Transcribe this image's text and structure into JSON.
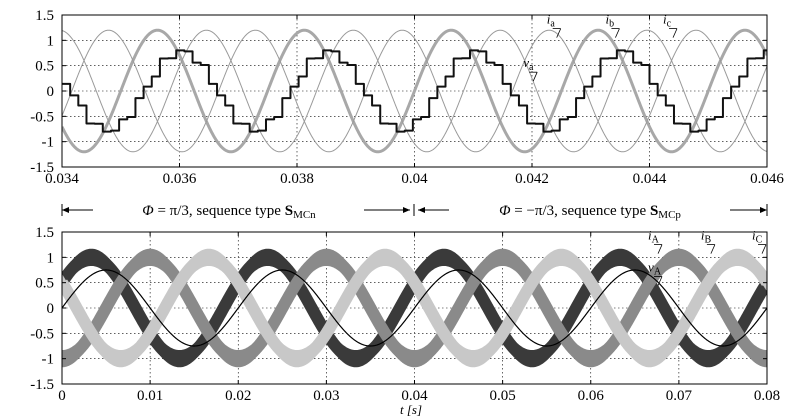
{
  "chart_data": [
    {
      "type": "line",
      "xlabel": "",
      "ylabel": "",
      "xlim": [
        0.034,
        0.046
      ],
      "ylim": [
        -1.5,
        1.5
      ],
      "grid": true,
      "x_ticks": [
        "0.034",
        "0.036",
        "0.038",
        "0.04",
        "0.042",
        "0.044",
        "0.046"
      ],
      "y_ticks": [
        "1.5",
        "1",
        "0.5",
        "0",
        "-0.5",
        "-1",
        "-1.5"
      ],
      "frequency_hz": 400,
      "series": [
        {
          "name": "i",
          "sub": "a",
          "amplitude": 1.2,
          "phase_deg": 0,
          "color": "#a8a8a8",
          "width": 3
        },
        {
          "name": "i",
          "sub": "b",
          "amplitude": 1.2,
          "phase_deg": -120,
          "color": "#9a9a9a",
          "width": 1
        },
        {
          "name": "i",
          "sub": "c",
          "amplitude": 1.2,
          "phase_deg": 120,
          "color": "#9a9a9a",
          "width": 1
        },
        {
          "name": "v",
          "sub": "a",
          "amplitude": 0.78,
          "phase_deg": -60,
          "color": "#111111",
          "width": 2,
          "style": "staircase"
        }
      ],
      "annotations": [
        {
          "label_main": "i",
          "label_sub": "a",
          "x": 0.04225,
          "y": 1.33
        },
        {
          "label_main": "i",
          "label_sub": "b",
          "x": 0.04325,
          "y": 1.33
        },
        {
          "label_main": "i",
          "label_sub": "c",
          "x": 0.04423,
          "y": 1.33
        },
        {
          "label_main": "v",
          "label_sub": "a",
          "x": 0.04185,
          "y": 0.47
        }
      ]
    },
    {
      "type": "line",
      "xlabel": "t [s]",
      "ylabel": "",
      "xlim": [
        0,
        0.08
      ],
      "ylim": [
        -1.5,
        1.5
      ],
      "grid": true,
      "x_ticks": [
        "0",
        "0.01",
        "0.02",
        "0.03",
        "0.04",
        "0.05",
        "0.06",
        "0.07",
        "0.08"
      ],
      "y_ticks": [
        "1.5",
        "1",
        "0.5",
        "0",
        "-0.5",
        "-1",
        "-1.5"
      ],
      "frequency_hz": 50,
      "series": [
        {
          "name": "i",
          "sub": "A",
          "amplitude": 1.0,
          "phase_deg": 30,
          "ripple": 0.17,
          "color": "#3a3a3a",
          "width": 12
        },
        {
          "name": "i",
          "sub": "B",
          "amplitude": 1.0,
          "phase_deg": -90,
          "ripple": 0.17,
          "color": "#8a8a8a",
          "width": 12
        },
        {
          "name": "i",
          "sub": "C",
          "amplitude": 1.0,
          "phase_deg": 150,
          "ripple": 0.17,
          "color": "#c8c8c8",
          "width": 12
        },
        {
          "name": "v",
          "sub": "A",
          "amplitude": 0.75,
          "phase_deg": 0,
          "color": "#000000",
          "width": 1.2
        }
      ],
      "annotations": [
        {
          "label_main": "i",
          "label_sub": "A",
          "x": 0.0665,
          "y": 1.35
        },
        {
          "label_main": "i",
          "label_sub": "B",
          "x": 0.0725,
          "y": 1.35
        },
        {
          "label_main": "i",
          "label_sub": "C",
          "x": 0.0783,
          "y": 1.35
        },
        {
          "label_main": "v",
          "label_sub": "A",
          "x": 0.0665,
          "y": 0.72
        }
      ]
    }
  ],
  "sequence_annotation": {
    "left_text_a": "Φ",
    "left_text_b": " = π/3, sequence type ",
    "left_S": "S",
    "left_sub": "MCn",
    "right_text_a": "Φ",
    "right_text_b": " = −π/3, sequence type ",
    "right_S": "S",
    "right_sub": "MCp"
  }
}
